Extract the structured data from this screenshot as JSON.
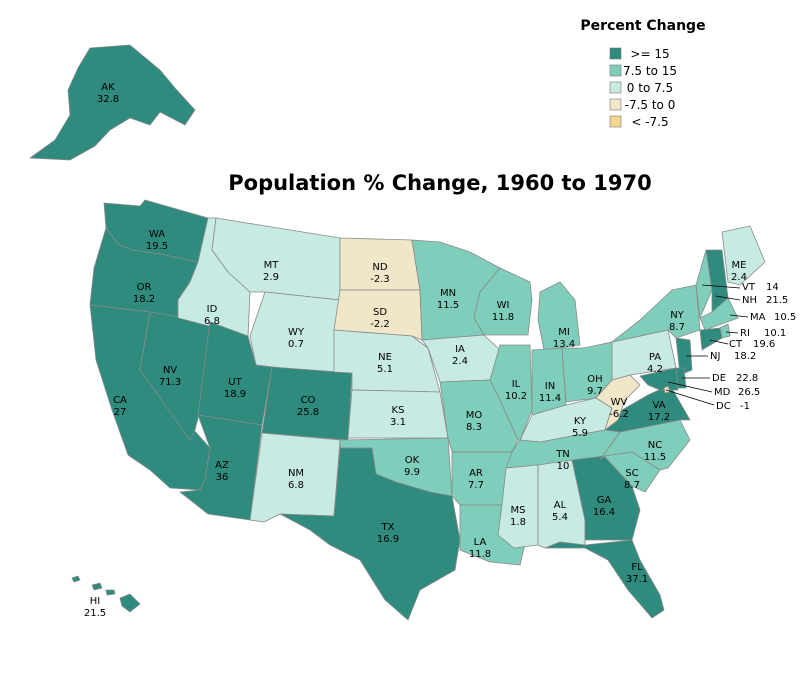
{
  "title": "Population % Change, 1960 to 1970",
  "legend": {
    "title": "Percent Change",
    "items": [
      {
        "label": ">= 15",
        "color": "#2e8b7e"
      },
      {
        "label": "7.5 to 15",
        "color": "#7fcdbb"
      },
      {
        "label": "0 to 7.5",
        "color": "#c7eae2"
      },
      {
        "label": "-7.5 to 0",
        "color": "#f0e6c8"
      },
      {
        "label": "< -7.5",
        "color": "#f3d690"
      }
    ]
  },
  "states": [
    {
      "abbr": "AK",
      "value": "32.8"
    },
    {
      "abbr": "WA",
      "value": "19.5"
    },
    {
      "abbr": "OR",
      "value": "18.2"
    },
    {
      "abbr": "CA",
      "value": "27"
    },
    {
      "abbr": "NV",
      "value": "71.3"
    },
    {
      "abbr": "ID",
      "value": "6.8"
    },
    {
      "abbr": "MT",
      "value": "2.9"
    },
    {
      "abbr": "WY",
      "value": "0.7"
    },
    {
      "abbr": "UT",
      "value": "18.9"
    },
    {
      "abbr": "CO",
      "value": "25.8"
    },
    {
      "abbr": "AZ",
      "value": "36"
    },
    {
      "abbr": "NM",
      "value": "6.8"
    },
    {
      "abbr": "ND",
      "value": "-2.3"
    },
    {
      "abbr": "SD",
      "value": "-2.2"
    },
    {
      "abbr": "NE",
      "value": "5.1"
    },
    {
      "abbr": "KS",
      "value": "3.1"
    },
    {
      "abbr": "OK",
      "value": "9.9"
    },
    {
      "abbr": "TX",
      "value": "16.9"
    },
    {
      "abbr": "MN",
      "value": "11.5"
    },
    {
      "abbr": "IA",
      "value": "2.4"
    },
    {
      "abbr": "MO",
      "value": "8.3"
    },
    {
      "abbr": "AR",
      "value": "7.7"
    },
    {
      "abbr": "LA",
      "value": "11.8"
    },
    {
      "abbr": "WI",
      "value": "11.8"
    },
    {
      "abbr": "IL",
      "value": "10.2"
    },
    {
      "abbr": "MI",
      "value": "13.4"
    },
    {
      "abbr": "IN",
      "value": "11.4"
    },
    {
      "abbr": "OH",
      "value": "9.7"
    },
    {
      "abbr": "KY",
      "value": "5.9"
    },
    {
      "abbr": "TN",
      "value": "10"
    },
    {
      "abbr": "MS",
      "value": "1.8"
    },
    {
      "abbr": "AL",
      "value": "5.4"
    },
    {
      "abbr": "GA",
      "value": "16.4"
    },
    {
      "abbr": "FL",
      "value": "37.1"
    },
    {
      "abbr": "SC",
      "value": "8.7"
    },
    {
      "abbr": "NC",
      "value": "11.5"
    },
    {
      "abbr": "VA",
      "value": "17.2"
    },
    {
      "abbr": "WV",
      "value": "-6.2"
    },
    {
      "abbr": "PA",
      "value": "4.2"
    },
    {
      "abbr": "NY",
      "value": "8.7"
    },
    {
      "abbr": "ME",
      "value": "2.4"
    },
    {
      "abbr": "HI",
      "value": "21.5"
    },
    {
      "abbr": "VT",
      "value": "14"
    },
    {
      "abbr": "NH",
      "value": "21.5"
    },
    {
      "abbr": "MA",
      "value": "10.5"
    },
    {
      "abbr": "RI",
      "value": "10.1"
    },
    {
      "abbr": "CT",
      "value": "19.6"
    },
    {
      "abbr": "NJ",
      "value": "18.2"
    },
    {
      "abbr": "DE",
      "value": "22.8"
    },
    {
      "abbr": "MD",
      "value": "26.5"
    },
    {
      "abbr": "DC",
      "value": "-1"
    }
  ]
}
